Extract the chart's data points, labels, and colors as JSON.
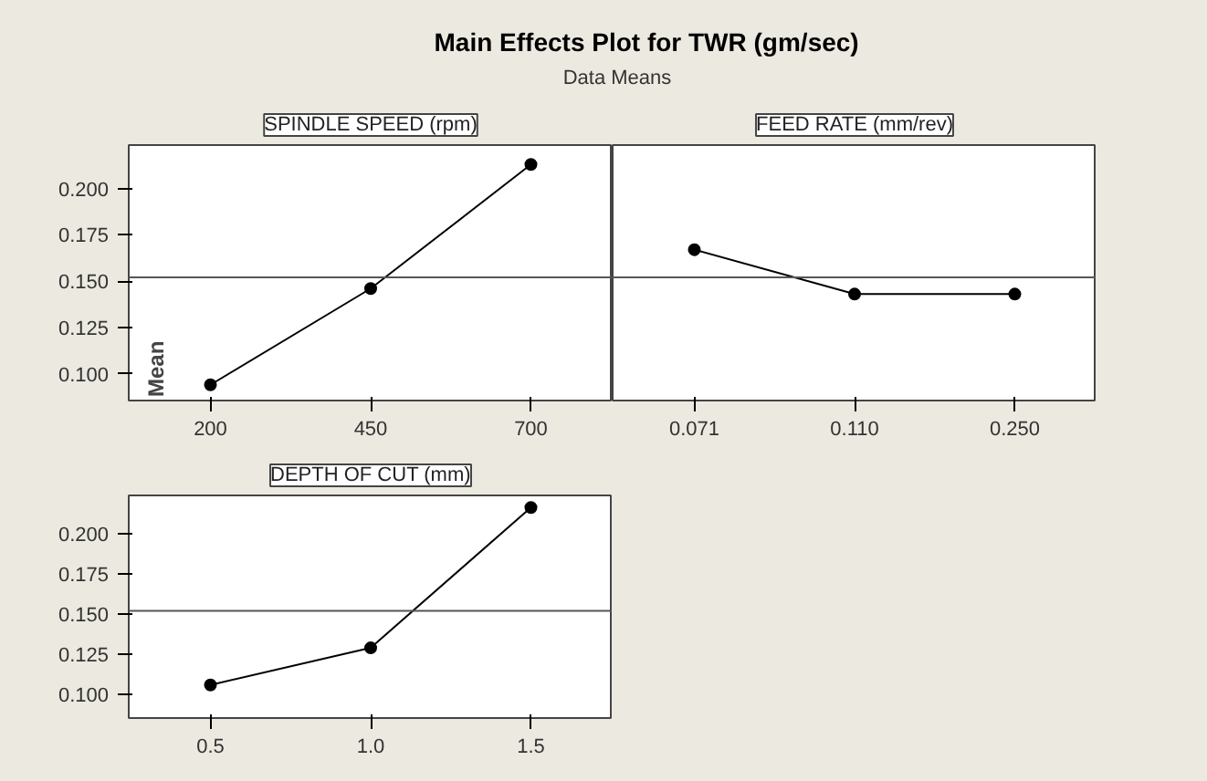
{
  "chart_data": [
    {
      "type": "line",
      "title": "Main Effects Plot for TWR (gm/sec)",
      "subtitle": "Data Means",
      "xlabel": "SPINDLE SPEED (rpm)",
      "ylabel": "Mean",
      "categories": [
        "200",
        "450",
        "700"
      ],
      "values": [
        0.094,
        0.146,
        0.213
      ],
      "color": "#000000",
      "marker": "circle",
      "line_style": "solid",
      "grid": false,
      "ylim": [
        0.0855,
        0.2235
      ],
      "yticks": [
        {
          "value": 0.1,
          "label": "0.100"
        },
        {
          "value": 0.125,
          "label": "0.125"
        },
        {
          "value": 0.15,
          "label": "0.150"
        },
        {
          "value": 0.175,
          "label": "0.175"
        },
        {
          "value": 0.2,
          "label": "0.200"
        }
      ],
      "ref_lines": [
        {
          "axis": "y",
          "value": 0.152
        }
      ]
    },
    {
      "type": "line",
      "xlabel": "FEED RATE (mm/rev)",
      "categories": [
        "0.071",
        "0.110",
        "0.250"
      ],
      "values": [
        0.167,
        0.143,
        0.143
      ],
      "color": "#000000",
      "marker": "circle",
      "line_style": "solid",
      "grid": false,
      "ylim": [
        0.0855,
        0.2235
      ],
      "tick_labels": "x",
      "ref_lines": [
        {
          "axis": "y",
          "value": 0.152
        }
      ]
    },
    {
      "type": "line",
      "xlabel": "DEPTH OF CUT (mm)",
      "categories": [
        "0.5",
        "1.0",
        "1.5"
      ],
      "values": [
        0.106,
        0.129,
        0.216
      ],
      "color": "#000000",
      "marker": "circle",
      "line_style": "solid",
      "grid": false,
      "ylim": [
        0.0855,
        0.2235
      ],
      "yticks": [
        {
          "value": 0.1,
          "label": "0.100"
        },
        {
          "value": 0.125,
          "label": "0.125"
        },
        {
          "value": 0.15,
          "label": "0.150"
        },
        {
          "value": 0.175,
          "label": "0.175"
        },
        {
          "value": 0.2,
          "label": "0.200"
        }
      ],
      "ref_lines": [
        {
          "axis": "y",
          "value": 0.152
        }
      ]
    }
  ]
}
